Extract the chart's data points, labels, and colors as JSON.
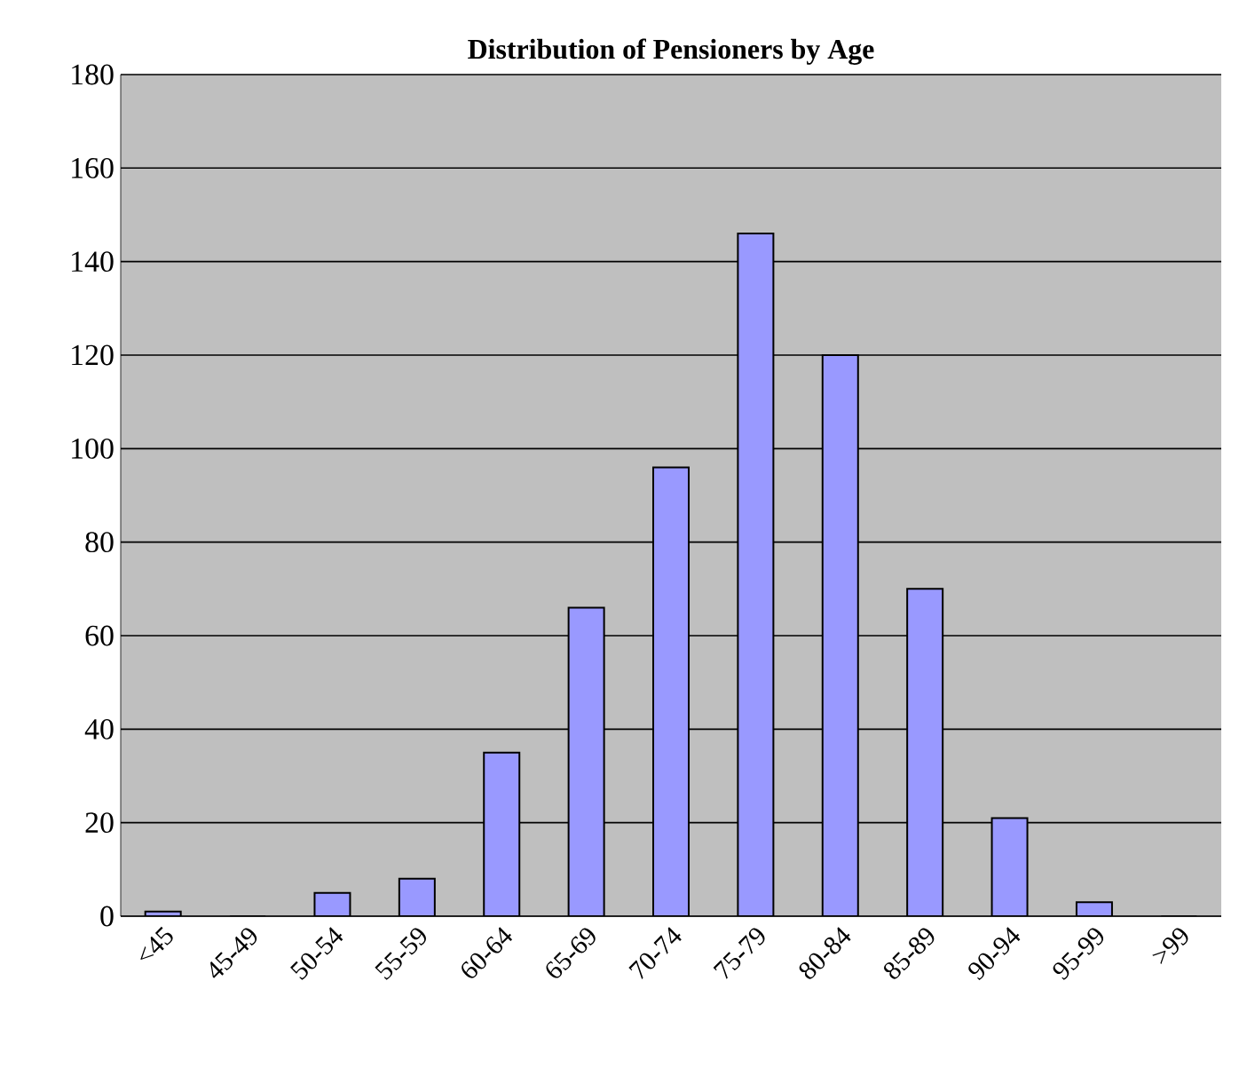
{
  "chart_data": {
    "type": "bar",
    "title": "Distribution  of Pensioners by Age",
    "categories": [
      "<45",
      "45-49",
      "50-54",
      "55-59",
      "60-64",
      "65-69",
      "70-74",
      "75-79",
      "80-84",
      "85-89",
      "90-94",
      "95-99",
      ">99"
    ],
    "values": [
      1,
      0,
      5,
      8,
      35,
      66,
      96,
      146,
      120,
      70,
      21,
      3,
      0
    ],
    "color": "#9999ff",
    "ylim": [
      0,
      180
    ],
    "yticks": [
      0,
      20,
      40,
      60,
      80,
      100,
      120,
      140,
      160,
      180
    ],
    "grid": "y"
  }
}
